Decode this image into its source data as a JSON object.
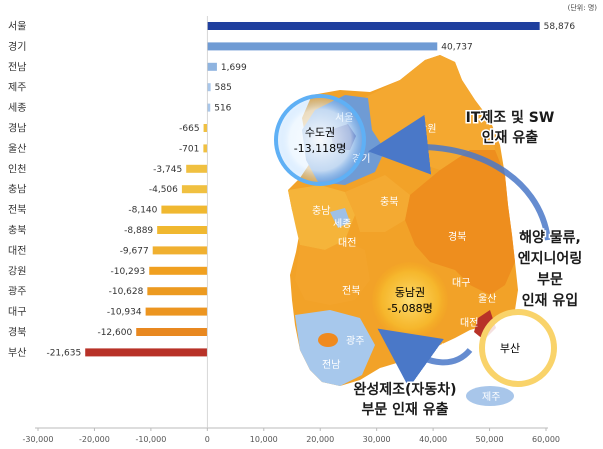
{
  "chart_data": {
    "type": "bar",
    "orientation": "horizontal",
    "unit": "(단위: 명)",
    "categories": [
      "서울",
      "경기",
      "전남",
      "제주",
      "세종",
      "경남",
      "울산",
      "인천",
      "충남",
      "전북",
      "충북",
      "대전",
      "강원",
      "광주",
      "대구",
      "경북",
      "부산"
    ],
    "values": [
      58876,
      40737,
      1699,
      585,
      516,
      -665,
      -701,
      -3745,
      -4506,
      -8140,
      -8889,
      -9677,
      -10293,
      -10628,
      -10934,
      -12600,
      -21635
    ],
    "value_labels": [
      "58,876",
      "40,737",
      "1,699",
      "585",
      "516",
      "-665",
      "-701",
      "-3,745",
      "-4,506",
      "-8,140",
      "-8,889",
      "-9,677",
      "-10,293",
      "-10,628",
      "-10,934",
      "-12,600",
      "-21,635"
    ],
    "bar_colors": [
      "#1f3f9e",
      "#6f9bd4",
      "#8fb4e0",
      "#a8c6ea",
      "#a8c6ea",
      "#f0c040",
      "#f0c040",
      "#f0c040",
      "#f0c040",
      "#f0b830",
      "#f0b830",
      "#f0b030",
      "#f0a020",
      "#ec9a20",
      "#ec9520",
      "#e88820",
      "#b83228"
    ],
    "xlim": [
      -30000,
      60000
    ],
    "x_ticks": [
      -30000,
      -20000,
      -10000,
      0,
      10000,
      20000,
      30000,
      40000,
      50000,
      60000
    ],
    "x_tick_labels": [
      "-30,000",
      "-20,000",
      "-10,000",
      "0",
      "10,000",
      "20,000",
      "30,000",
      "40,000",
      "50,000",
      "60,000"
    ],
    "grid": false
  },
  "map": {
    "region_labels": [
      "서울",
      "경기",
      "강원",
      "충북",
      "충남",
      "세종",
      "대전",
      "경북",
      "대구",
      "전북",
      "경남",
      "울산",
      "부산",
      "광주",
      "전남",
      "제주"
    ],
    "sudogwon": {
      "name": "수도권",
      "value": "-13,118명"
    },
    "dongnamgwon": {
      "name": "동남권",
      "value": "-5,088명"
    },
    "busan_label": "부산",
    "annotations": {
      "it_outflow": [
        "IT제조 및 SW",
        "인재 유출"
      ],
      "maritime_inflow": [
        "해양 물류,",
        "엔지니어링",
        "부문",
        "인재 유입"
      ],
      "auto_outflow": [
        "완성제조(자동차)",
        "부문 인재 유출"
      ]
    }
  }
}
